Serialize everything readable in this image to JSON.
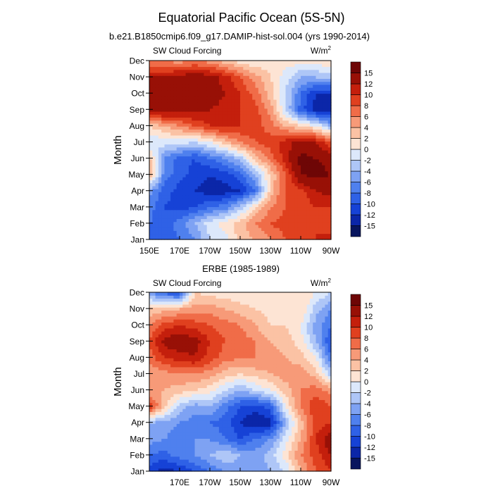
{
  "figure": {
    "title": "Equatorial Pacific Ocean (5S-5N)"
  },
  "chart_data": [
    {
      "type": "heatmap",
      "title": "b.e21.B1850cmip6.f09_g17.DAMIP-hist-sol.004 (yrs 1990-2014)",
      "left_label": "SW Cloud Forcing",
      "units_base": "W/m",
      "units_exp": "2",
      "xlabel": "",
      "ylabel": "Month",
      "xlim": [
        150,
        270
      ],
      "x_ticks": [
        {
          "value": 150,
          "label": "150E"
        },
        {
          "value": 170,
          "label": "170E"
        },
        {
          "value": 190,
          "label": "170W"
        },
        {
          "value": 210,
          "label": "150W"
        },
        {
          "value": 230,
          "label": "130W"
        },
        {
          "value": 250,
          "label": "110W"
        },
        {
          "value": 270,
          "label": "90W"
        }
      ],
      "months": [
        "Jan",
        "Feb",
        "Mar",
        "Apr",
        "May",
        "Jun",
        "Jul",
        "Aug",
        "Sep",
        "Oct",
        "Nov",
        "Dec"
      ],
      "longitudes": [
        150,
        160,
        170,
        180,
        190,
        200,
        210,
        220,
        230,
        240,
        250,
        260,
        270
      ],
      "values": [
        [
          -9,
          -10,
          -8,
          -6,
          -2,
          -1,
          3,
          4,
          6,
          8,
          9,
          10,
          11
        ],
        [
          -8,
          -9,
          -7,
          -4,
          -1,
          1,
          3,
          6,
          8,
          9,
          10,
          10,
          8
        ],
        [
          -7,
          -10,
          -11,
          -10,
          -8,
          -7,
          -3,
          2,
          6,
          8,
          9,
          10,
          10
        ],
        [
          -5,
          -9,
          -11,
          -12,
          -13,
          -13,
          -12,
          -8,
          3,
          8,
          9,
          12,
          13
        ],
        [
          4,
          -7,
          -9,
          -11,
          -12,
          -11,
          -9,
          -4,
          2,
          8,
          15,
          16,
          15
        ],
        [
          3,
          -6,
          -9,
          -10,
          -8,
          -6,
          -3,
          3,
          7,
          11,
          16,
          15,
          14
        ],
        [
          -2,
          -1,
          -1,
          -2,
          0,
          3,
          6,
          8,
          9,
          11,
          13,
          12,
          8
        ],
        [
          2,
          4,
          6,
          8,
          10,
          11,
          10,
          9,
          7,
          4,
          2,
          0,
          -4
        ],
        [
          14,
          14,
          13,
          13,
          12,
          11,
          10,
          9,
          5,
          -2,
          -9,
          -13,
          -14
        ],
        [
          14,
          15,
          14,
          15,
          14,
          12,
          10,
          7,
          3,
          -2,
          -8,
          -12,
          -12
        ],
        [
          12,
          12,
          13,
          14,
          13,
          11,
          8,
          5,
          2,
          -1,
          -4,
          -4,
          -3
        ],
        [
          6,
          6,
          5,
          6,
          5,
          3,
          1,
          0,
          1,
          1,
          1,
          1,
          2
        ]
      ]
    },
    {
      "type": "heatmap",
      "title": "ERBE (1985-1989)",
      "left_label": "SW Cloud Forcing",
      "units_base": "W/m",
      "units_exp": "2",
      "xlabel": "",
      "ylabel": "Month",
      "xlim": [
        150,
        270
      ],
      "x_ticks": [
        {
          "value": 170,
          "label": "170E"
        },
        {
          "value": 190,
          "label": "170W"
        },
        {
          "value": 210,
          "label": "150W"
        },
        {
          "value": 230,
          "label": "130W"
        },
        {
          "value": 250,
          "label": "110W"
        },
        {
          "value": 270,
          "label": "90W"
        }
      ],
      "months": [
        "Jan",
        "Feb",
        "Mar",
        "Apr",
        "May",
        "Jun",
        "Jul",
        "Aug",
        "Sep",
        "Oct",
        "Nov",
        "Dec"
      ],
      "longitudes": [
        150,
        160,
        170,
        180,
        190,
        200,
        210,
        220,
        230,
        240,
        250,
        260,
        270
      ],
      "values": [
        [
          -11,
          -13,
          -12,
          -10,
          -8,
          -6,
          -5,
          -6,
          -4,
          -2,
          4,
          8,
          10
        ],
        [
          -8,
          -9,
          -7,
          -6,
          -4,
          -2,
          -4,
          -5,
          -3,
          1,
          6,
          9,
          12
        ],
        [
          -5,
          -6,
          -7,
          -6,
          -6,
          -8,
          -10,
          -8,
          -6,
          -1,
          4,
          10,
          14
        ],
        [
          -4,
          -5,
          -6,
          -7,
          -8,
          -9,
          -12,
          -14,
          -13,
          -4,
          3,
          9,
          10
        ],
        [
          10,
          3,
          -3,
          -5,
          -4,
          -7,
          -10,
          -11,
          -9,
          0,
          6,
          10,
          8
        ],
        [
          4,
          4,
          3,
          2,
          1,
          -2,
          -4,
          -2,
          0,
          3,
          6,
          7,
          5
        ],
        [
          4,
          5,
          6,
          6,
          5,
          3,
          2,
          3,
          4,
          5,
          5,
          3,
          -3
        ],
        [
          7,
          10,
          11,
          12,
          9,
          7,
          6,
          6,
          5,
          4,
          3,
          0,
          -8
        ],
        [
          8,
          13,
          14,
          13,
          10,
          8,
          7,
          6,
          4,
          3,
          1,
          -4,
          -10
        ],
        [
          6,
          9,
          10,
          9,
          8,
          7,
          6,
          4,
          2,
          2,
          0,
          -5,
          -8
        ],
        [
          2,
          3,
          4,
          5,
          5,
          4,
          3,
          2,
          1,
          2,
          2,
          -3,
          -6
        ],
        [
          -5,
          -9,
          -10,
          2,
          1,
          1,
          0,
          0,
          0,
          1,
          2,
          0,
          -2
        ]
      ]
    }
  ],
  "colorbar": {
    "levels": [
      -15,
      -12,
      -10,
      -8,
      -6,
      -4,
      -2,
      0,
      2,
      4,
      6,
      8,
      10,
      12,
      15
    ],
    "labels": [
      "-15",
      "-12",
      "-10",
      "-8",
      "-6",
      "-4",
      "-2",
      "0",
      "2",
      "4",
      "6",
      "8",
      "10",
      "12",
      "15"
    ],
    "colors": [
      "#08155e",
      "#0b26a8",
      "#1642d6",
      "#2f61e6",
      "#4f80ee",
      "#7ea2f3",
      "#aec6f7",
      "#dce8fb",
      "#fde4d4",
      "#fbc2a4",
      "#f79a78",
      "#f06c48",
      "#e0401f",
      "#c41f0c",
      "#981006",
      "#6e0606"
    ]
  }
}
